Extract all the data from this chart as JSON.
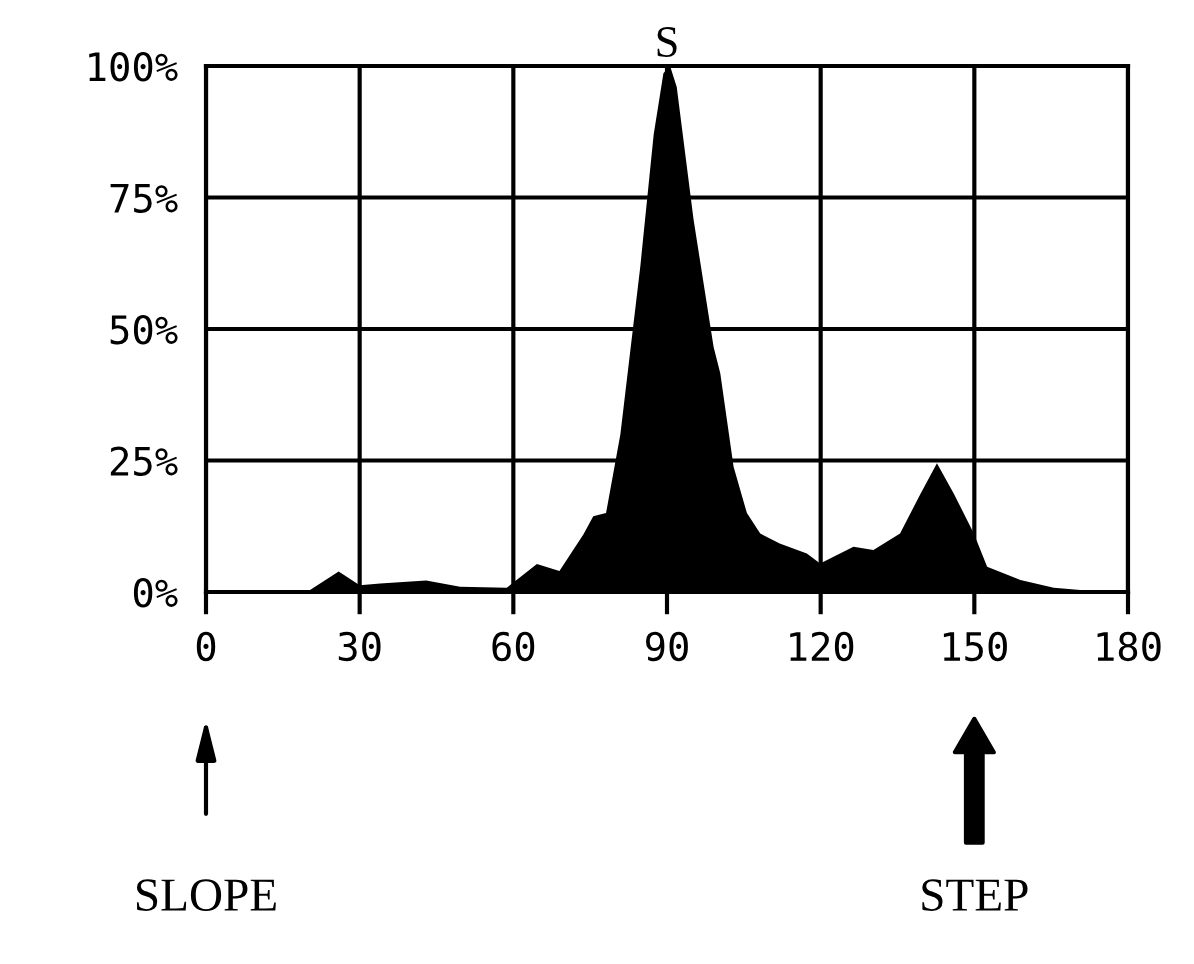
{
  "chart_data": {
    "type": "area",
    "title": "S",
    "x": [
      0,
      19.7,
      25.9,
      30,
      34,
      43,
      49.6,
      58.7,
      64.6,
      69,
      73.7,
      75.6,
      78.1,
      80.9,
      84.8,
      87.4,
      89.3,
      90.6,
      91.9,
      95.2,
      99.1,
      100.4,
      103,
      105.6,
      108.2,
      112,
      117.3,
      119.9,
      126.4,
      130.3,
      135.5,
      139.5,
      142.7,
      146,
      149.9,
      152.5,
      159,
      165.5,
      170.7,
      180
    ],
    "series": [
      {
        "color": "#000000",
        "values": [
          0,
          0,
          3.9,
          1.3,
          1.6,
          2.2,
          1,
          0.8,
          5.3,
          4,
          11,
          14.4,
          15,
          30,
          62,
          87,
          98.6,
          100,
          96,
          70.7,
          46.6,
          41.6,
          23.8,
          15,
          11.1,
          9.2,
          7.3,
          5.4,
          8.6,
          8,
          11.1,
          18.7,
          24.5,
          18.7,
          11.1,
          4.8,
          2.3,
          0.8,
          0.4,
          0
        ]
      }
    ],
    "xlim": [
      0,
      180
    ],
    "xticks": [
      0,
      30,
      60,
      90,
      120,
      150,
      180
    ],
    "ylim": [
      0,
      100
    ],
    "yticks": [
      {
        "value": 0,
        "label": "0%"
      },
      {
        "value": 25,
        "label": "25%"
      },
      {
        "value": 50,
        "label": "50%"
      },
      {
        "value": 75,
        "label": "75%"
      },
      {
        "value": 100,
        "label": "100%"
      }
    ],
    "grid": true,
    "annotations": [
      "SLOPE",
      "STEP"
    ]
  }
}
